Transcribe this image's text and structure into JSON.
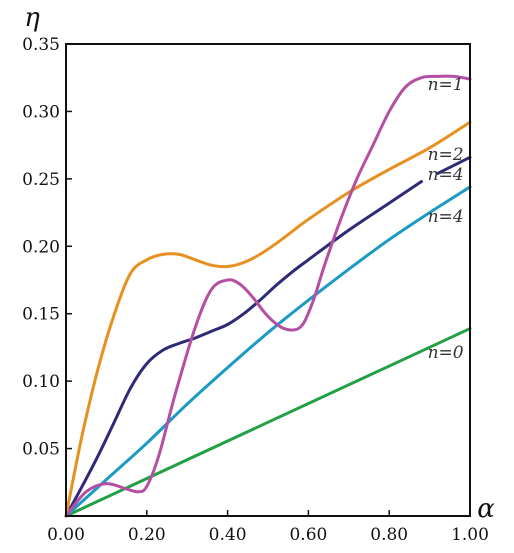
{
  "chart_data": {
    "type": "line",
    "xlabel": "α",
    "ylabel": "η",
    "xlim": [
      0,
      1
    ],
    "ylim": [
      0,
      0.35
    ],
    "x_ticks": [
      "0.00",
      "0.20",
      "0.40",
      "0.60",
      "0.80",
      "1.00"
    ],
    "y_ticks": [
      "0.05",
      "0.10",
      "0.15",
      "0.20",
      "0.25",
      "0.30",
      "0.35"
    ],
    "grid": false,
    "series": [
      {
        "name": "n=1",
        "color": "#b44fa3",
        "x": [
          0,
          0.05,
          0.1,
          0.15,
          0.18,
          0.2,
          0.23,
          0.27,
          0.32,
          0.36,
          0.4,
          0.43,
          0.46,
          0.5,
          0.54,
          0.58,
          0.61,
          0.64,
          0.68,
          0.72,
          0.76,
          0.8,
          0.84,
          0.88,
          0.92,
          0.96,
          1.0
        ],
        "y": [
          0,
          0.018,
          0.024,
          0.02,
          0.018,
          0.022,
          0.045,
          0.09,
          0.14,
          0.168,
          0.175,
          0.172,
          0.163,
          0.148,
          0.139,
          0.14,
          0.158,
          0.186,
          0.22,
          0.25,
          0.275,
          0.3,
          0.318,
          0.325,
          0.326,
          0.326,
          0.324
        ]
      },
      {
        "name": "n=2",
        "color": "#e8901f",
        "x": [
          0,
          0.04,
          0.08,
          0.12,
          0.16,
          0.2,
          0.24,
          0.28,
          0.32,
          0.36,
          0.4,
          0.44,
          0.48,
          0.52,
          0.56,
          0.6,
          0.7,
          0.8,
          0.9,
          1.0
        ],
        "y": [
          0,
          0.06,
          0.11,
          0.15,
          0.18,
          0.19,
          0.194,
          0.194,
          0.19,
          0.186,
          0.185,
          0.188,
          0.194,
          0.202,
          0.211,
          0.22,
          0.24,
          0.257,
          0.273,
          0.292
        ]
      },
      {
        "name": "n=4",
        "color": "#2e2a78",
        "x": [
          0,
          0.04,
          0.08,
          0.12,
          0.16,
          0.2,
          0.24,
          0.28,
          0.32,
          0.36,
          0.4,
          0.44,
          0.48,
          0.52,
          0.56,
          0.6,
          0.7,
          0.8,
          0.88
        ],
        "y": [
          0,
          0.022,
          0.045,
          0.07,
          0.095,
          0.113,
          0.123,
          0.128,
          0.132,
          0.137,
          0.142,
          0.15,
          0.16,
          0.171,
          0.181,
          0.19,
          0.212,
          0.232,
          0.248
        ]
      },
      {
        "name": "n=4",
        "color": "#1a9ac4",
        "x": [
          0,
          0.1,
          0.2,
          0.3,
          0.4,
          0.5,
          0.6,
          0.7,
          0.8,
          0.9,
          1.0
        ],
        "y": [
          0,
          0.027,
          0.054,
          0.083,
          0.11,
          0.136,
          0.16,
          0.183,
          0.205,
          0.225,
          0.244
        ]
      },
      {
        "name": "n=0",
        "color": "#22a045",
        "x": [
          0,
          1.0
        ],
        "y": [
          0,
          0.139
        ]
      }
    ],
    "extra_segment": {
      "color": "#2e2a78",
      "x": [
        0.92,
        1.0
      ],
      "y": [
        0.254,
        0.266
      ]
    },
    "labels": [
      {
        "text": "n=1",
        "x": 0.895,
        "y": 0.316
      },
      {
        "text": "n=2",
        "x": 0.895,
        "y": 0.264
      },
      {
        "text": "n=4",
        "x": 0.895,
        "y": 0.249
      },
      {
        "text": "n=4",
        "x": 0.895,
        "y": 0.218
      },
      {
        "text": "n=0",
        "x": 0.895,
        "y": 0.117
      }
    ]
  }
}
